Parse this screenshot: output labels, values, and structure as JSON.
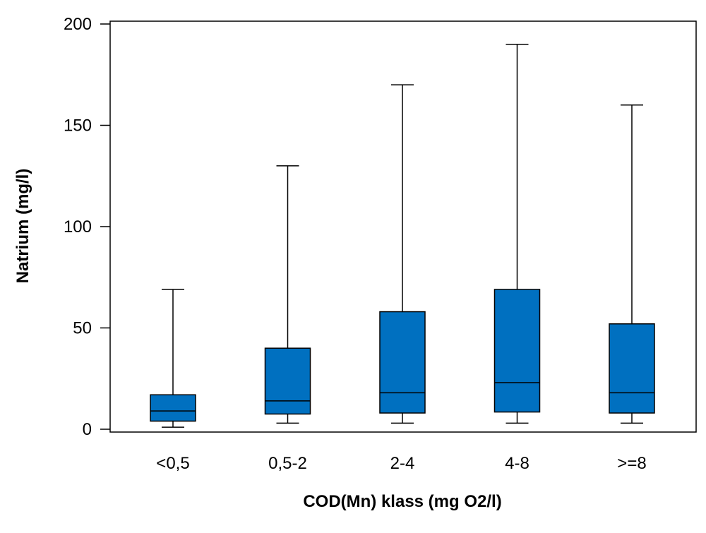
{
  "chart_data": {
    "type": "boxplot",
    "xlabel": "COD(Mn) klass (mg O2/l)",
    "ylabel": "Natrium (mg/l)",
    "ylim": [
      0,
      200
    ],
    "yticks": [
      0,
      50,
      100,
      150,
      200
    ],
    "categories": [
      "<0,5",
      "0,5-2",
      "2-4",
      "4-8",
      ">=8"
    ],
    "boxes": [
      {
        "category": "<0,5",
        "whisker_low": 1,
        "q1": 4,
        "median": 9,
        "q3": 17,
        "whisker_high": 69
      },
      {
        "category": "0,5-2",
        "whisker_low": 3,
        "q1": 7.5,
        "median": 14,
        "q3": 40,
        "whisker_high": 130
      },
      {
        "category": "2-4",
        "whisker_low": 3,
        "q1": 8,
        "median": 18,
        "q3": 58,
        "whisker_high": 170
      },
      {
        "category": "4-8",
        "whisker_low": 3,
        "q1": 8.5,
        "median": 23,
        "q3": 69,
        "whisker_high": 190
      },
      {
        "category": ">=8",
        "whisker_low": 3,
        "q1": 8,
        "median": 18,
        "q3": 52,
        "whisker_high": 160
      }
    ],
    "box_color": "#0070c0",
    "grid": false,
    "legend": "none"
  }
}
